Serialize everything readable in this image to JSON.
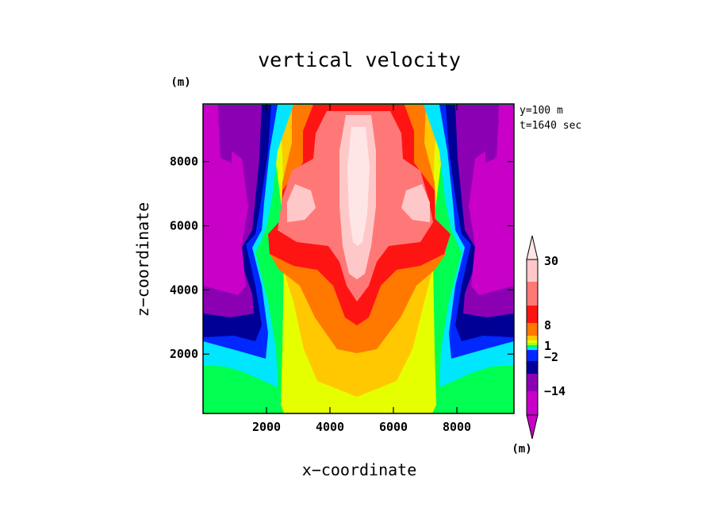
{
  "chart_data": {
    "type": "contour",
    "title": "vertical velocity",
    "xlabel": "x−coordinate",
    "ylabel": "z−coordinate",
    "y_unit": "(m)",
    "x_unit": "(m)",
    "annotations": [
      "y=100 m",
      "t=1640 sec"
    ],
    "xlim": [
      0,
      9800
    ],
    "ylim": [
      150,
      9800
    ],
    "x_ticks": [
      2000,
      4000,
      6000,
      8000
    ],
    "x_tick_labels": [
      "2000",
      "4000",
      "6000",
      "8000"
    ],
    "y_ticks": [
      2000,
      4000,
      6000,
      8000
    ],
    "y_tick_labels": [
      "2000",
      "4000",
      "6000",
      "8000"
    ],
    "colorbar": {
      "labels": [
        {
          "text": "30",
          "value": 30
        },
        {
          "text": "8",
          "value": 8
        },
        {
          "text": "1",
          "value": 1
        },
        {
          "text": "−2",
          "value": -2
        },
        {
          "text": "−14",
          "value": -14
        }
      ],
      "levels": [
        {
          "color": "#c800c8",
          "value": -20
        },
        {
          "color": "#8c00b4",
          "value": -14
        },
        {
          "color": "#000096",
          "value": -8
        },
        {
          "color": "#0028ff",
          "value": -5
        },
        {
          "color": "#00e6ff",
          "value": -3
        },
        {
          "color": "#00ff50",
          "value": -2
        },
        {
          "color": "#96ff32",
          "value": -1
        },
        {
          "color": "#e6ff00",
          "value": 1
        },
        {
          "color": "#ffc800",
          "value": 2
        },
        {
          "color": "#ff7800",
          "value": 4
        },
        {
          "color": "#ff1414",
          "value": 8
        },
        {
          "color": "#ff7878",
          "value": 15
        },
        {
          "color": "#ffc8c8",
          "value": 22
        },
        {
          "color": "#ffe6e6",
          "value": 30
        }
      ]
    }
  }
}
